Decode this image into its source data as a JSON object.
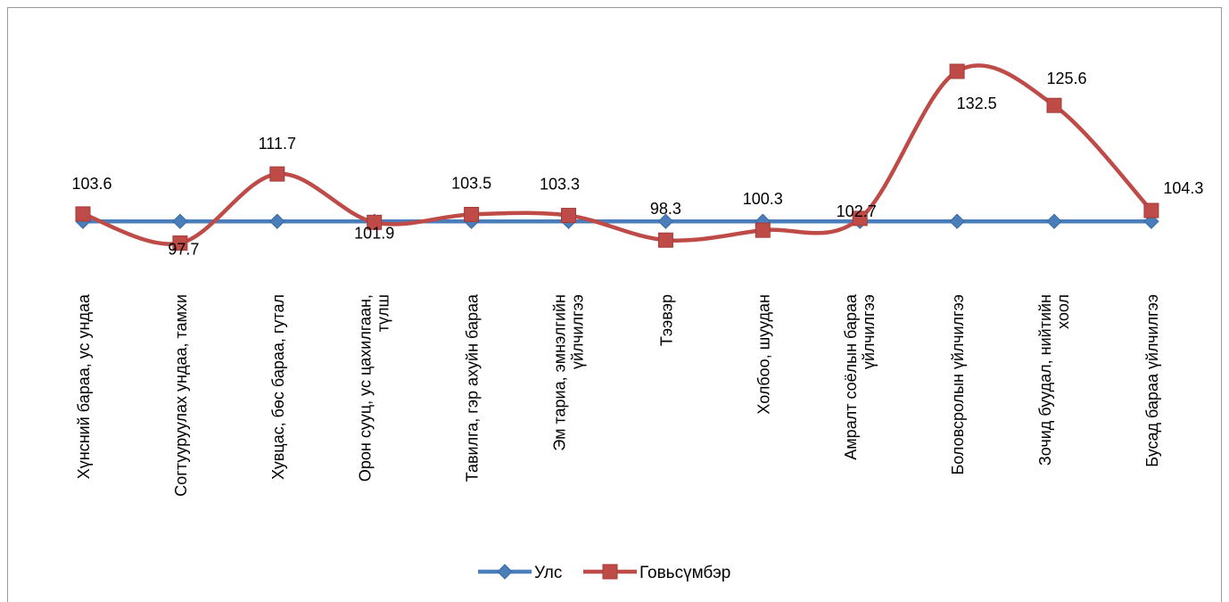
{
  "chart_data": {
    "type": "line",
    "categories": [
      [
        "Хүнсний бараа, ус ундаа"
      ],
      [
        "Согтууруулах ундаа, тамхи"
      ],
      [
        "Хувцас, бөс бараа, гутал"
      ],
      [
        "Орон сууц, ус цахилгаан,",
        "түлш"
      ],
      [
        "Тавилга, гэр ахуйн бараа"
      ],
      [
        "Эм тариа, эмнэлгийн",
        "үйлчилгээ"
      ],
      [
        "Тээвэр"
      ],
      [
        "Холбоо, шуудан"
      ],
      [
        "Амралт соёлын бараа",
        "үйлчилгээ"
      ],
      [
        "Боловсролын үйлчилгээ"
      ],
      [
        "Зочид буудал, нийтийн",
        "хоол"
      ],
      [
        "Бусад бараа үйлчилгээ"
      ]
    ],
    "series": [
      {
        "name": "Улс",
        "color": "#4a7ebb",
        "marker": "diamond",
        "smooth": false,
        "values": [
          102.1,
          102.1,
          102.1,
          102.1,
          102.1,
          102.1,
          102.1,
          102.1,
          102.1,
          102.1,
          102.1,
          102.1
        ],
        "show_labels": false
      },
      {
        "name": "Говьсүмбэр",
        "color": "#be4b48",
        "marker": "square",
        "smooth": true,
        "values": [
          103.6,
          97.7,
          111.7,
          101.9,
          103.5,
          103.3,
          98.3,
          100.3,
          102.7,
          132.5,
          125.6,
          104.3
        ],
        "labels": [
          "103.6",
          "97.7",
          "111.7",
          "101.9",
          "103.5",
          "103.3",
          "98.3",
          "100.3",
          "102.7",
          "132.5",
          "125.6",
          "104.3"
        ],
        "show_labels": true
      }
    ],
    "ylim": [
      60,
      135
    ],
    "grid": false,
    "legend": "bottom",
    "title": "",
    "xlabel": "",
    "ylabel": ""
  }
}
